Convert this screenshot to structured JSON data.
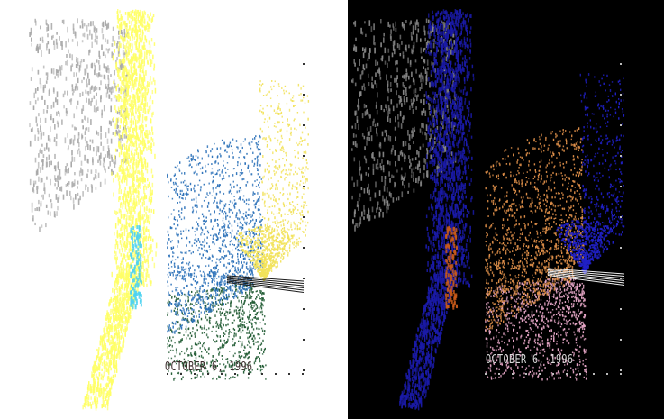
{
  "figure": {
    "left_panel": {
      "date_label": "OCTOBER 6, 1996",
      "colors": {
        "background": "#ffffff",
        "trail_gray": "#a8a8a8",
        "column_yellow": "#ffff66",
        "fan_yellow": "#f2e25a",
        "fan_blue": "#2a70b8",
        "fan_green": "#1f5a32",
        "core_cyan": "#4fd2f0",
        "ray_dark": "#1a1a1a"
      }
    },
    "right_panel": {
      "date_label": "OCTOBER 6, 1996",
      "colors": {
        "background": "#000000",
        "trail_gray": "#8a8a8a",
        "column_blue": "#1a1aa8",
        "fan_blue": "#2020c8",
        "fan_orange": "#e0904a",
        "fan_pink": "#e8a8c8",
        "core_orange": "#c85a1a",
        "ray_light": "#f0f0f0"
      }
    }
  }
}
